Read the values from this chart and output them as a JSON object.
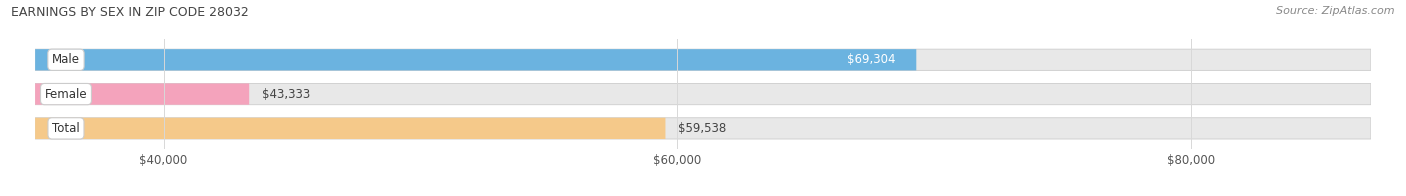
{
  "title": "EARNINGS BY SEX IN ZIP CODE 28032",
  "source": "Source: ZipAtlas.com",
  "categories": [
    "Male",
    "Female",
    "Total"
  ],
  "values": [
    69304,
    43333,
    59538
  ],
  "bar_colors": [
    "#6bb3e0",
    "#f4a3bc",
    "#f5c98a"
  ],
  "bar_bg_color": "#e8e8e8",
  "xmin": 35000,
  "xmax": 87000,
  "xticks": [
    40000,
    60000,
    80000
  ],
  "xtick_labels": [
    "$40,000",
    "$60,000",
    "$80,000"
  ],
  "value_labels": [
    "$69,304",
    "$43,333",
    "$59,538"
  ],
  "bar_height": 0.62,
  "figsize": [
    14.06,
    1.96
  ],
  "dpi": 100,
  "title_fontsize": 9,
  "source_fontsize": 8,
  "label_fontsize": 8.5,
  "value_fontsize": 8.5,
  "tick_fontsize": 8.5
}
